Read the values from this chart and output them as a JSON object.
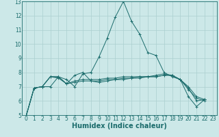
{
  "xlabel": "Humidex (Indice chaleur)",
  "background_color": "#cce8e8",
  "grid_color": "#aacfcf",
  "line_color": "#1a6b6b",
  "spine_color": "#1a6b6b",
  "xlim": [
    -0.5,
    23.5
  ],
  "ylim": [
    5,
    13
  ],
  "xticks": [
    0,
    1,
    2,
    3,
    4,
    5,
    6,
    7,
    8,
    9,
    10,
    11,
    12,
    13,
    14,
    15,
    16,
    17,
    18,
    19,
    20,
    21,
    22,
    23
  ],
  "yticks": [
    5,
    6,
    7,
    8,
    9,
    10,
    11,
    12,
    13
  ],
  "series": [
    [
      4.9,
      6.9,
      7.0,
      7.0,
      7.7,
      7.5,
      7.0,
      7.9,
      8.0,
      9.1,
      10.4,
      11.9,
      13.0,
      11.6,
      10.7,
      9.4,
      9.2,
      8.0,
      7.7,
      7.5,
      6.3,
      5.6,
      6.1
    ],
    [
      4.9,
      6.9,
      7.0,
      7.7,
      7.6,
      7.2,
      7.8,
      8.0,
      7.4,
      7.3,
      7.4,
      7.5,
      7.6,
      7.6,
      7.7,
      7.7,
      7.7,
      7.8,
      7.8,
      7.5,
      7.0,
      6.3,
      6.1
    ],
    [
      4.9,
      6.9,
      7.0,
      7.7,
      7.7,
      7.2,
      7.3,
      7.4,
      7.4,
      7.4,
      7.5,
      7.5,
      7.5,
      7.6,
      7.6,
      7.7,
      7.7,
      7.8,
      7.8,
      7.5,
      6.8,
      6.2,
      6.0
    ],
    [
      4.9,
      6.9,
      7.0,
      7.7,
      7.7,
      7.2,
      7.4,
      7.5,
      7.5,
      7.5,
      7.6,
      7.6,
      7.7,
      7.7,
      7.7,
      7.7,
      7.8,
      7.9,
      7.8,
      7.5,
      6.9,
      6.0,
      6.1
    ]
  ],
  "xlabel_fontsize": 7,
  "xlabel_fontweight": "bold",
  "tick_labelsize": 5.5,
  "linewidth": 0.7,
  "markersize": 2.5,
  "markeredgewidth": 0.7
}
